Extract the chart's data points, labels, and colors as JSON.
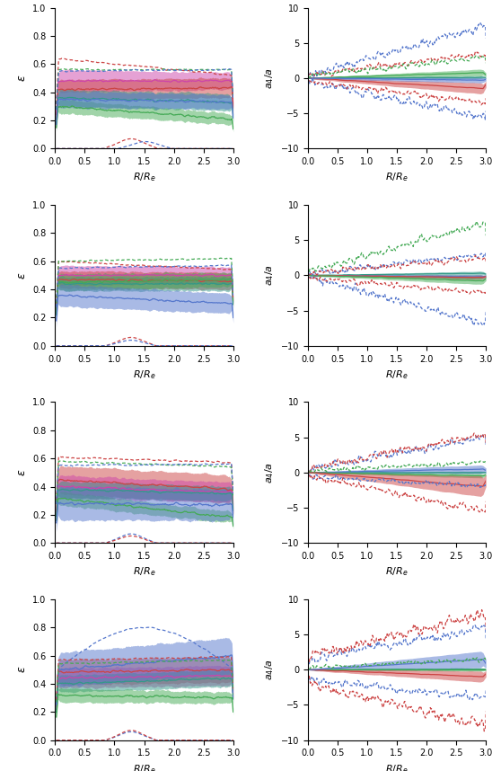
{
  "n_rows": 4,
  "n_cols": 2,
  "x_range": [
    0.0,
    3.0
  ],
  "left_ylim": [
    0.0,
    1.0
  ],
  "right_ylim": [
    -10,
    10
  ],
  "left_ylabel": "\\epsilon",
  "right_ylabel": "a_4/a",
  "xlabel": "R/ R_e",
  "colors": {
    "blue": "#5577cc",
    "red": "#cc4444",
    "green": "#44aa55",
    "teal": "#339988",
    "magenta": "#cc44aa",
    "pink": "#ee8899"
  },
  "left_yticks": [
    0.0,
    0.2,
    0.4,
    0.6,
    0.8,
    1.0
  ],
  "right_yticks": [
    -10,
    -5,
    0,
    5,
    10
  ],
  "left_xticks": [
    0.0,
    0.5,
    1.0,
    1.5,
    2.0,
    2.5,
    3.0
  ],
  "right_xticks": [
    0.0,
    0.5,
    1.0,
    1.5,
    2.0,
    2.5,
    3.0
  ]
}
